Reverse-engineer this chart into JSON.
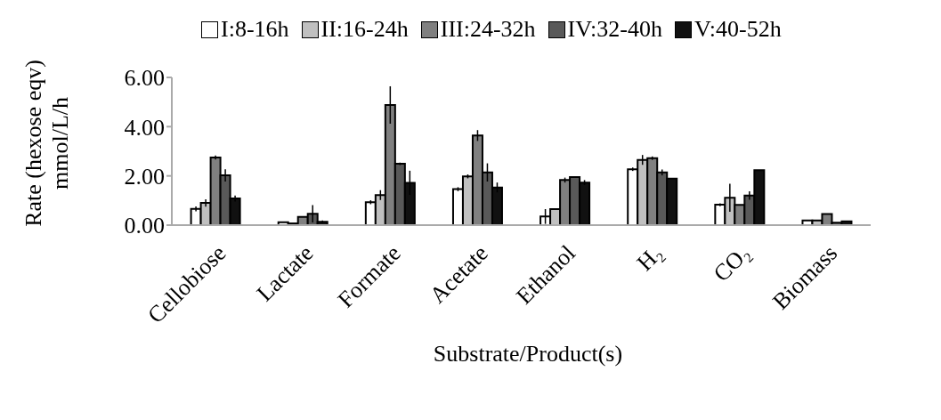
{
  "chart_data": {
    "type": "bar",
    "xlabel": "Substrate/Product(s)",
    "ylabel": "Rate (hexose eqv)\nmmol/L/h",
    "categories": [
      "Cellobiose",
      "Lactate",
      "Formate",
      "Acetate",
      "Ethanol",
      "H₂",
      "CO₂",
      "Biomass"
    ],
    "series": [
      {
        "name": "I:8-16h",
        "color": "#ffffff",
        "values": [
          0.66,
          0.12,
          0.93,
          1.46,
          0.35,
          2.27,
          0.83,
          0.19
        ],
        "errors": [
          0.1,
          null,
          0.08,
          0.08,
          0.3,
          0.07,
          0.06,
          null
        ]
      },
      {
        "name": "II:16-24h",
        "color": "#c0c0c0",
        "values": [
          0.9,
          0.07,
          1.22,
          1.98,
          0.65,
          2.65,
          1.11,
          0.19
        ],
        "errors": [
          0.15,
          null,
          0.2,
          0.08,
          null,
          0.2,
          0.57,
          null
        ]
      },
      {
        "name": "III:24-32h",
        "color": "#808080",
        "values": [
          2.75,
          0.33,
          4.88,
          3.64,
          1.83,
          2.72,
          0.82,
          0.45
        ],
        "errors": [
          0.08,
          null,
          0.76,
          0.22,
          0.1,
          0.07,
          null,
          null
        ]
      },
      {
        "name": "IV:32-40h",
        "color": "#595959",
        "values": [
          2.02,
          0.46,
          2.49,
          2.14,
          1.95,
          2.14,
          1.2,
          0.1
        ],
        "errors": [
          0.25,
          0.35,
          0.05,
          0.37,
          null,
          0.12,
          0.17,
          null
        ]
      },
      {
        "name": "V:40-52h",
        "color": "#111111",
        "values": [
          1.08,
          0.14,
          1.72,
          1.53,
          1.73,
          1.89,
          2.23,
          0.15
        ],
        "errors": [
          0.12,
          0.05,
          0.49,
          0.2,
          0.1,
          null,
          null,
          null
        ]
      }
    ],
    "ylim": [
      0,
      6
    ],
    "yticks": [
      {
        "value": 0,
        "label": "0.00"
      },
      {
        "value": 2,
        "label": "2.00"
      },
      {
        "value": 4,
        "label": "4.00"
      },
      {
        "value": 6,
        "label": "6.00"
      }
    ],
    "grid": false,
    "legend": "top"
  }
}
